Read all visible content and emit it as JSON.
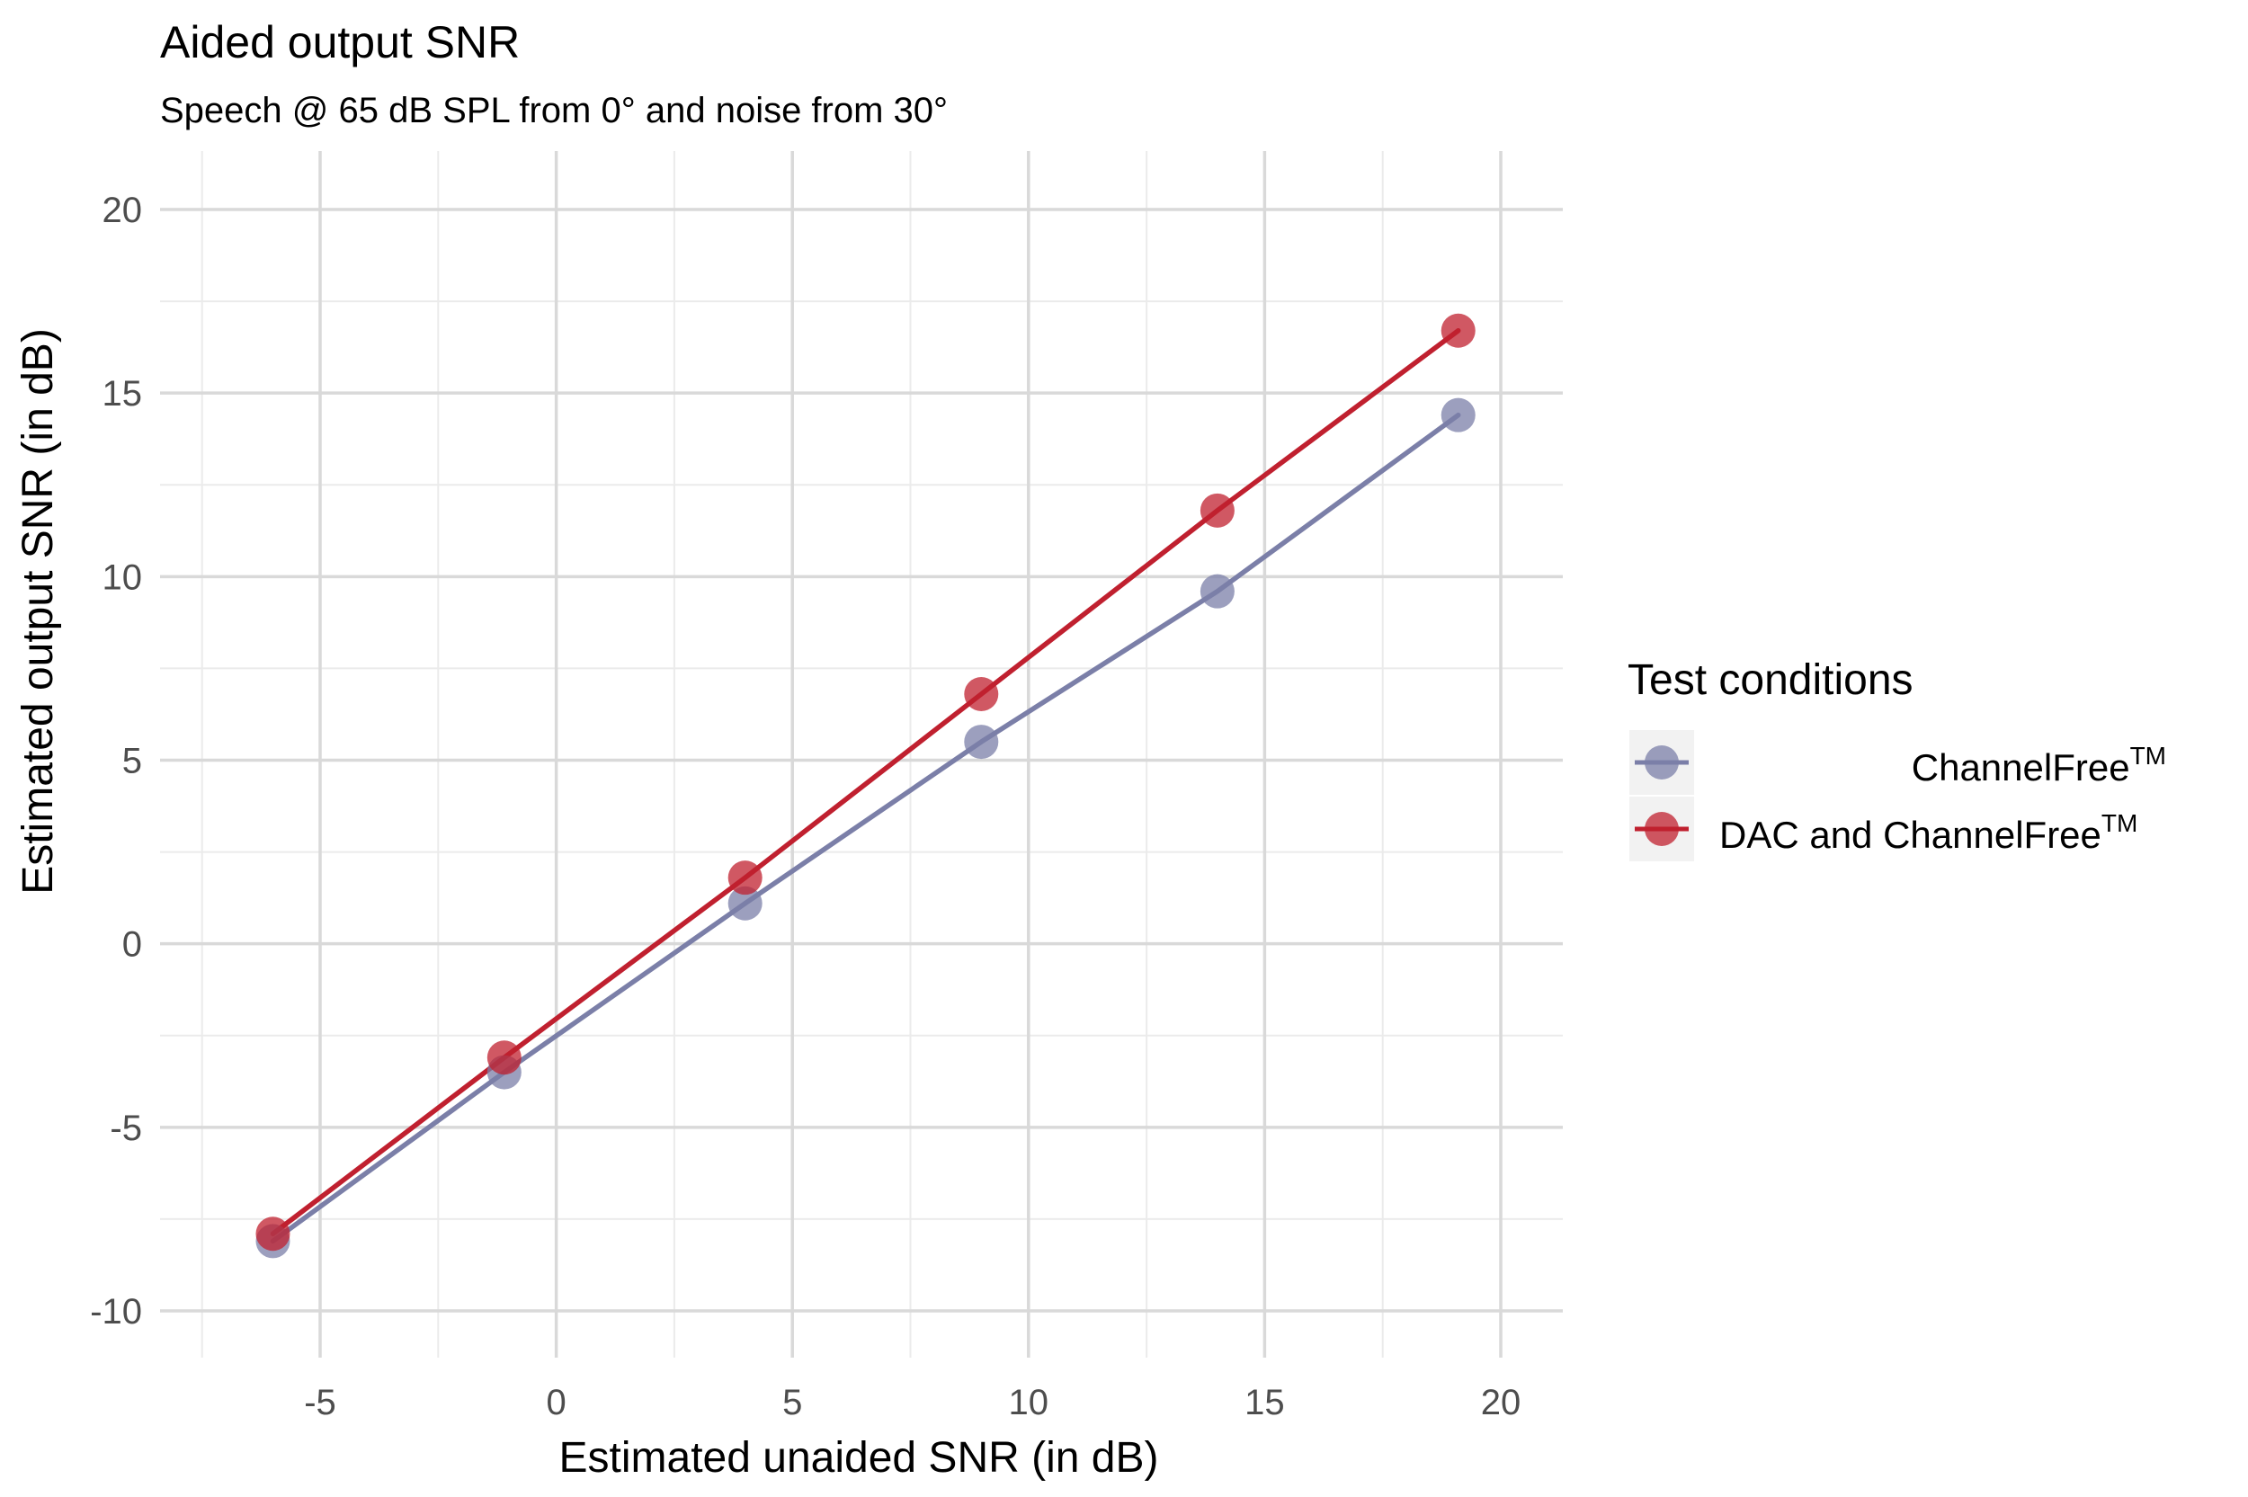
{
  "chart_data": {
    "type": "line",
    "title": "Aided output SNR",
    "subtitle": "Speech @ 65 dB SPL from 0° and noise from 30°",
    "xlabel": "Estimated unaided SNR (in dB)",
    "ylabel": "Estimated output SNR (in dB)",
    "xlim": [
      -7.5,
      21
    ],
    "ylim": [
      -11,
      21
    ],
    "xticks": [
      -5,
      0,
      5,
      10,
      15,
      20
    ],
    "xtick_labels": [
      "-5",
      "0",
      "5",
      "10",
      "15",
      "20"
    ],
    "yticks": [
      -10,
      -5,
      0,
      5,
      10,
      15,
      20
    ],
    "ytick_labels": [
      "-10",
      "-5",
      "0",
      "5",
      "10",
      "15",
      "20"
    ],
    "grid": true,
    "legend": {
      "title": "Test conditions",
      "position": "right",
      "entries": [
        {
          "label": "ChannelFree",
          "sup": "TM"
        },
        {
          "label": "DAC and ChannelFree",
          "sup": "TM"
        }
      ]
    },
    "series": [
      {
        "name": "ChannelFree™",
        "color": "#7b7fa8",
        "x": [
          -6,
          -1.1,
          4,
          9,
          14,
          19.1
        ],
        "y": [
          -8.1,
          -3.5,
          1.1,
          5.5,
          9.6,
          14.4
        ]
      },
      {
        "name": "DAC and ChannelFree™",
        "color": "#c0202f",
        "x": [
          -6,
          -1.1,
          4,
          9,
          14,
          19.1
        ],
        "y": [
          -7.9,
          -3.1,
          1.8,
          6.8,
          11.8,
          16.7
        ]
      }
    ]
  }
}
